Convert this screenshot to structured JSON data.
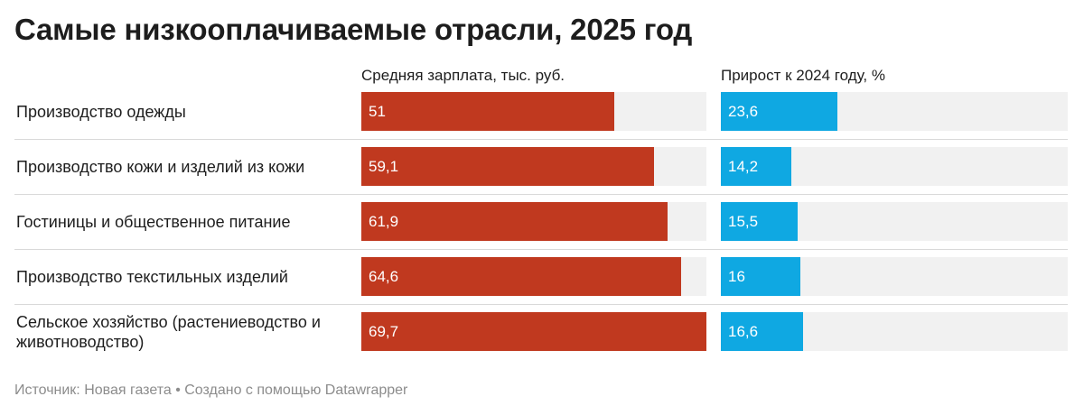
{
  "title": "Самые низкооплачиваемые отрасли, 2025 год",
  "footer": "Источник: Новая газета • Создано с помощью Datawrapper",
  "colors": {
    "salary_bar": "#c0391f",
    "growth_bar": "#0fa8e2",
    "bar_background": "#f1f1f1"
  },
  "chart_data": {
    "type": "bar",
    "orientation": "horizontal",
    "categories": [
      "Производство одежды",
      "Производство кожи и изделий из кожи",
      "Гостиницы и общественное питание",
      "Производство текстильных изделий",
      "Сельское хозяйство (растениеводство и животноводство)"
    ],
    "series": [
      {
        "name": "Средняя зарплата, тыс. руб.",
        "values": [
          51,
          59.1,
          61.9,
          64.6,
          69.7
        ],
        "labels": [
          "51",
          "59,1",
          "61,9",
          "64,6",
          "69,7"
        ],
        "xlim": [
          0,
          69.7
        ]
      },
      {
        "name": "Прирост к 2024 году, %",
        "values": [
          23.6,
          14.2,
          15.5,
          16,
          16.6
        ],
        "labels": [
          "23,6",
          "14,2",
          "15,5",
          "16",
          "16,6"
        ],
        "xlim": [
          0,
          70
        ]
      }
    ]
  }
}
